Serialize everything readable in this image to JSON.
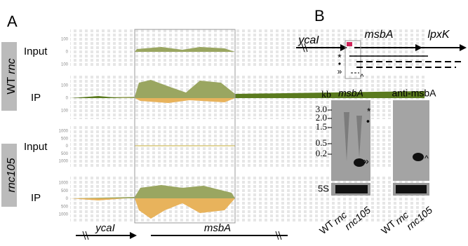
{
  "panel_a": {
    "label": "A",
    "groups": [
      {
        "name": "WT",
        "gene": "rnc",
        "tracks": [
          {
            "label": "Input",
            "ticks": [
              100,
              0,
              100
            ]
          },
          {
            "label": "IP",
            "ticks": [
              100,
              0,
              100
            ]
          }
        ]
      },
      {
        "name": "rnc105",
        "tracks": [
          {
            "label": "Input",
            "ticks": [
              1000,
              500,
              0,
              500,
              1000
            ]
          },
          {
            "label": "IP",
            "ticks": [
              1000,
              500,
              0,
              500,
              1000
            ]
          }
        ]
      }
    ],
    "genes": [
      "ycaI",
      "msbA"
    ]
  },
  "panel_b": {
    "label": "B",
    "map_genes": [
      "ycaI",
      "msbA",
      "lpxK"
    ],
    "map_symbols": [
      "*",
      "•",
      "»",
      "^"
    ],
    "blot": {
      "unit": "kb",
      "markers": [
        "3.0",
        "2.0",
        "1.5",
        "0.5",
        "0.2"
      ],
      "probes": [
        "msbA",
        "anti-msbA"
      ],
      "band_marks": [
        "*",
        "•",
        "»",
        "^"
      ],
      "loading": "5S",
      "lanes": [
        [
          "WT",
          "rnc",
          "rnc105"
        ],
        [
          "WT",
          "rnc",
          "rnc105"
        ]
      ]
    }
  }
}
